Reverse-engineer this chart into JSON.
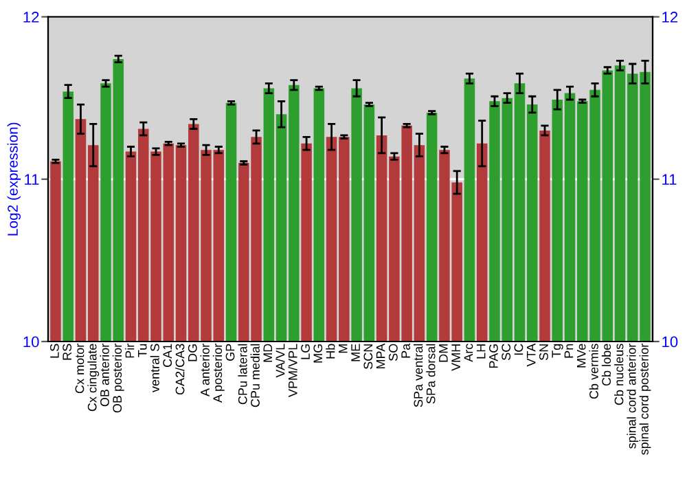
{
  "chart_data": {
    "type": "bar",
    "ylabel": "Log2 (expression)",
    "categories": [
      "LS",
      "RS",
      "Cx motor",
      "Cx cingulate",
      "OB anterior",
      "OB posterior",
      "Pir",
      "Tu",
      "ventral S",
      "CA1",
      "CA2/CA3",
      "DG",
      "A anterior",
      "A posterior",
      "GP",
      "CPu lateral",
      "CPu medial",
      "MD",
      "VA/VL",
      "VPM/VPL",
      "LG",
      "MG",
      "Hb",
      "M",
      "ME",
      "SCN",
      "MPA",
      "SO",
      "Pa",
      "SPa ventral",
      "SPa dorsal",
      "DM",
      "VMH",
      "Arc",
      "LH",
      "PAG",
      "SC",
      "IC",
      "VTA",
      "SN",
      "Tg",
      "Pn",
      "MVe",
      "Cb vermis",
      "Cb lobe",
      "Cb nucleus",
      "spinal cord anterior",
      "spinal cord posterior"
    ],
    "values": [
      11.11,
      11.54,
      11.37,
      11.21,
      11.59,
      11.74,
      11.17,
      11.31,
      11.17,
      11.22,
      11.21,
      11.34,
      11.18,
      11.18,
      11.47,
      11.1,
      11.26,
      11.56,
      11.4,
      11.58,
      11.22,
      11.56,
      11.26,
      11.26,
      11.56,
      11.46,
      11.27,
      11.14,
      11.33,
      11.21,
      11.41,
      11.18,
      10.98,
      11.62,
      11.22,
      11.48,
      11.5,
      11.59,
      11.46,
      11.3,
      11.49,
      11.53,
      11.48,
      11.55,
      11.67,
      11.7,
      11.65,
      11.66
    ],
    "errors": [
      0.01,
      0.04,
      0.09,
      0.13,
      0.02,
      0.02,
      0.03,
      0.04,
      0.02,
      0.01,
      0.01,
      0.03,
      0.03,
      0.02,
      0.01,
      0.01,
      0.04,
      0.03,
      0.08,
      0.03,
      0.04,
      0.01,
      0.08,
      0.01,
      0.05,
      0.01,
      0.11,
      0.02,
      0.01,
      0.07,
      0.01,
      0.02,
      0.07,
      0.03,
      0.14,
      0.03,
      0.03,
      0.06,
      0.05,
      0.03,
      0.06,
      0.04,
      0.01,
      0.04,
      0.02,
      0.03,
      0.06,
      0.07
    ],
    "colors": [
      "#b23a3a",
      "#2e9e2e",
      "#b23a3a",
      "#b23a3a",
      "#2e9e2e",
      "#2e9e2e",
      "#b23a3a",
      "#b23a3a",
      "#b23a3a",
      "#b23a3a",
      "#b23a3a",
      "#b23a3a",
      "#b23a3a",
      "#b23a3a",
      "#2e9e2e",
      "#b23a3a",
      "#b23a3a",
      "#2e9e2e",
      "#2e9e2e",
      "#2e9e2e",
      "#b23a3a",
      "#2e9e2e",
      "#b23a3a",
      "#b23a3a",
      "#2e9e2e",
      "#2e9e2e",
      "#b23a3a",
      "#b23a3a",
      "#b23a3a",
      "#b23a3a",
      "#2e9e2e",
      "#b23a3a",
      "#b23a3a",
      "#2e9e2e",
      "#b23a3a",
      "#2e9e2e",
      "#2e9e2e",
      "#2e9e2e",
      "#2e9e2e",
      "#b23a3a",
      "#2e9e2e",
      "#2e9e2e",
      "#2e9e2e",
      "#2e9e2e",
      "#2e9e2e",
      "#2e9e2e",
      "#2e9e2e",
      "#2e9e2e"
    ],
    "ylim": [
      10,
      12
    ],
    "yticks": [
      10,
      11,
      12
    ],
    "y2lim": [
      10,
      12
    ],
    "y2ticks": [
      10,
      11,
      12
    ],
    "grid": "y"
  }
}
